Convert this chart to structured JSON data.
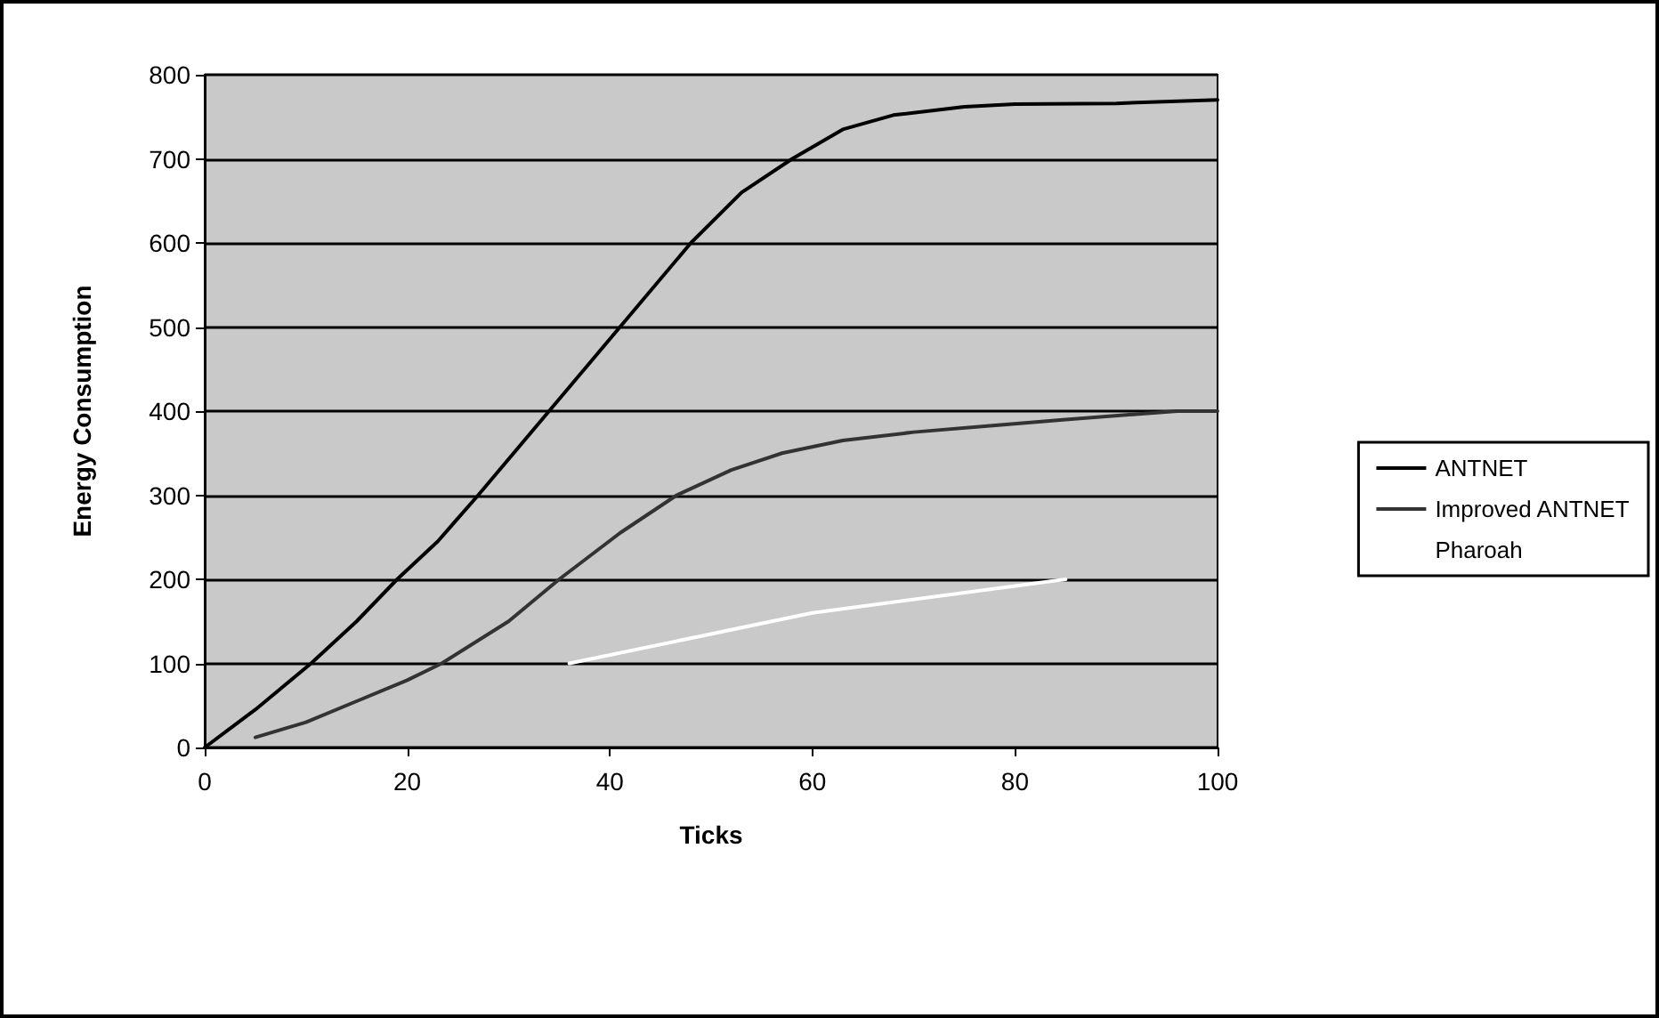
{
  "chart_data": {
    "type": "line",
    "xlabel": "Ticks",
    "ylabel": "Energy Consumption",
    "xlim": [
      0,
      100
    ],
    "xticks": [
      0,
      20,
      40,
      60,
      80,
      100
    ],
    "ylim": [
      0,
      800
    ],
    "yticks": [
      0,
      100,
      200,
      300,
      400,
      500,
      600,
      700,
      800
    ],
    "grid": "y",
    "legend": "right",
    "marker": "none",
    "line_style": "solid",
    "series": [
      {
        "name": "ANTNET",
        "color": "#000000",
        "x": [
          0,
          5,
          10.5,
          15,
          19,
          23,
          27,
          34,
          41,
          48,
          53,
          58,
          63,
          68,
          75,
          80,
          90,
          100
        ],
        "values": [
          0,
          45,
          100,
          150,
          200,
          245,
          300,
          400,
          500,
          600,
          660,
          700,
          735,
          752,
          762,
          765,
          766,
          770
        ]
      },
      {
        "name": "Improved ANTNET",
        "color": "#333333",
        "x": [
          5,
          10,
          15,
          20,
          23.4,
          30,
          35,
          41,
          46.6,
          52,
          57,
          63,
          70,
          77,
          85,
          96,
          100
        ],
        "values": [
          12,
          30,
          55,
          80,
          100,
          150,
          200,
          255,
          300,
          330,
          350,
          365,
          375,
          382,
          390,
          400,
          400
        ]
      },
      {
        "name": "Pharoah",
        "color": "#ffffff",
        "x": [
          36,
          60,
          85
        ],
        "values": [
          100,
          160,
          200
        ]
      }
    ]
  }
}
